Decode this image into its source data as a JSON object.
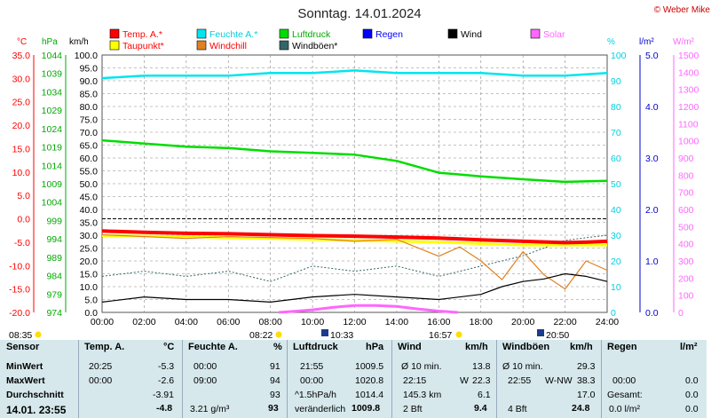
{
  "title": "Sonntag. 14.01.2024",
  "brand": "© Weber Mike",
  "legend": [
    {
      "label": "Temp. A.*",
      "color": "#ff0000",
      "text_color": "#ff0000"
    },
    {
      "label": "Taupunkt*",
      "color": "#ffff00",
      "text_color": "#ff0000"
    },
    {
      "label": "Feuchte A.*",
      "color": "#00e5ee",
      "text_color": "#00d0e0"
    },
    {
      "label": "Windchill",
      "color": "#e08020",
      "text_color": "#ff0000"
    },
    {
      "label": "Luftdruck",
      "color": "#00dd00",
      "text_color": "#00aa00"
    },
    {
      "label": "Windböen*",
      "color": "#336666",
      "text_color": "#000000"
    },
    {
      "label": "Regen",
      "color": "#0000ff",
      "text_color": "#0000ff"
    },
    {
      "label": "Wind",
      "color": "#000000",
      "text_color": "#000000"
    },
    {
      "label": "Solar",
      "color": "#ff66ff",
      "text_color": "#ff66ff"
    }
  ],
  "axes": {
    "temp_unit": "°C",
    "hpa_unit": "hPa",
    "kmh_unit": "km/h",
    "pct_unit": "%",
    "rain_unit": "l/m²",
    "solar_unit": "W/m²",
    "temp_ticks": [
      "35.0",
      "30.0",
      "25.0",
      "20.0",
      "15.0",
      "10.0",
      "5.0",
      "0.0",
      "-5.0",
      "-10.0",
      "-15.0",
      "-20.0"
    ],
    "hpa_ticks": [
      "1044",
      "1039",
      "1034",
      "1029",
      "1024",
      "1019",
      "1014",
      "1009",
      "1004",
      "999",
      "994",
      "989",
      "984",
      "979",
      "974"
    ],
    "kmh_ticks": [
      "100.0",
      "95.0",
      "90.0",
      "85.0",
      "80.0",
      "75.0",
      "70.0",
      "65.0",
      "60.0",
      "55.0",
      "50.0",
      "45.0",
      "40.0",
      "35.0",
      "30.0",
      "25.0",
      "20.0",
      "15.0",
      "10.0",
      "5.0",
      "0.0"
    ],
    "pct_ticks": [
      "100",
      "90",
      "80",
      "70",
      "60",
      "50",
      "40",
      "30",
      "20",
      "10",
      "0"
    ],
    "rain_ticks": [
      "5.0",
      "4.0",
      "3.0",
      "2.0",
      "1.0",
      "0.0"
    ],
    "solar_ticks": [
      "1500",
      "1400",
      "1300",
      "1200",
      "1100",
      "1000",
      "900",
      "800",
      "700",
      "600",
      "500",
      "400",
      "300",
      "200",
      "100",
      "0"
    ],
    "x_ticks": [
      "00:00",
      "02:00",
      "04:00",
      "06:00",
      "08:00",
      "10:00",
      "12:00",
      "14:00",
      "16:00",
      "18:00",
      "20:00",
      "22:00",
      "24:00"
    ]
  },
  "sun_marks": {
    "sunrise_prev": "08:35",
    "sunrise": "08:22",
    "moonrise": "10:33",
    "sunset": "16:57",
    "moonset": "20:50"
  },
  "chart_data": {
    "type": "line",
    "title": "Sonntag. 14.01.2024",
    "x_unit": "hours",
    "x_range": [
      0,
      24
    ],
    "kmh_range": [
      0,
      100
    ],
    "series": [
      {
        "name": "Temp. A.*",
        "unit": "°C",
        "x": [
          0,
          2,
          4,
          6,
          8,
          10,
          12,
          14,
          16,
          18,
          20,
          22,
          23,
          24
        ],
        "values": [
          -2.6,
          -2.9,
          -3.1,
          -3.2,
          -3.4,
          -3.6,
          -3.7,
          -3.9,
          -4.1,
          -4.5,
          -4.8,
          -5.1,
          -5.0,
          -4.8
        ]
      },
      {
        "name": "Taupunkt*",
        "unit": "°C",
        "x": [
          0,
          4,
          8,
          12,
          16,
          20,
          24
        ],
        "values": [
          -3.6,
          -3.8,
          -4.2,
          -4.6,
          -5.0,
          -5.6,
          -5.6
        ]
      },
      {
        "name": "Feuchte A.*",
        "unit": "%",
        "x": [
          0,
          2,
          4,
          6,
          8,
          10,
          12,
          14,
          16,
          18,
          20,
          22,
          24
        ],
        "values": [
          91,
          92,
          92,
          92,
          93,
          93,
          94,
          93,
          93,
          93,
          92,
          92,
          93
        ]
      },
      {
        "name": "Luftdruck",
        "unit": "hPa",
        "x": [
          0,
          2,
          4,
          6,
          8,
          10,
          12,
          14,
          16,
          18,
          20,
          22,
          24
        ],
        "values": [
          1020.8,
          1019.9,
          1019.1,
          1018.7,
          1017.8,
          1017.4,
          1016.9,
          1015.2,
          1012.0,
          1011.0,
          1010.2,
          1009.5,
          1009.8
        ]
      },
      {
        "name": "Solar",
        "unit": "W/m²",
        "x": [
          8.4,
          9,
          10,
          11,
          12,
          13,
          14,
          15,
          16,
          16.9
        ],
        "values": [
          0,
          5,
          15,
          30,
          40,
          40,
          35,
          20,
          8,
          0
        ]
      },
      {
        "name": "Wind",
        "unit": "km/h",
        "x": [
          0,
          2,
          4,
          6,
          8,
          10,
          12,
          14,
          16,
          18,
          19,
          20,
          21,
          22,
          23,
          24
        ],
        "values": [
          4,
          6,
          5,
          5,
          4,
          6,
          7,
          6,
          5,
          7,
          10,
          12,
          13,
          15,
          14,
          12
        ]
      },
      {
        "name": "Windböen*",
        "unit": "km/h",
        "x": [
          0,
          2,
          4,
          6,
          8,
          10,
          12,
          14,
          16,
          18,
          20,
          22,
          24
        ],
        "values": [
          14,
          16,
          14,
          16,
          12,
          18,
          16,
          18,
          14,
          18,
          22,
          28,
          30
        ]
      },
      {
        "name": "Windchill",
        "unit": "°C",
        "x": [
          0,
          4,
          6,
          8,
          10,
          12,
          14,
          16,
          17,
          18,
          19,
          20,
          21,
          22,
          23,
          24
        ],
        "values": [
          -3.4,
          -4.2,
          -3.8,
          -4.0,
          -4.2,
          -4.8,
          -4.4,
          -8,
          -6,
          -9,
          -13,
          -7,
          -12,
          -15,
          -9,
          -11
        ]
      }
    ]
  },
  "table": {
    "headers": {
      "sensor": "Sensor",
      "temp": "Temp. A.",
      "temp_u": "°C",
      "hum": "Feuchte A.",
      "hum_u": "%",
      "press": "Luftdruck",
      "press_u": "hPa",
      "wind": "Wind",
      "wind_u": "km/h",
      "gust": "Windböen",
      "gust_u": "km/h",
      "rain": "Regen",
      "rain_u": "l/m²"
    },
    "row_labels": {
      "min": "MinWert",
      "max": "MaxWert",
      "avg": "Durchschnitt",
      "now": "14.01. 23:55"
    },
    "temp": {
      "min_t": "20:25",
      "min_v": "-5.3",
      "max_t": "00:00",
      "max_v": "-2.6",
      "avg_v": "-3.91",
      "now_v": "-4.8"
    },
    "hum": {
      "min_t": "00:00",
      "min_v": "91",
      "max_t": "09:00",
      "max_v": "94",
      "avg_v": "93",
      "now_l": "3.21 g/m³",
      "now_v": "93"
    },
    "press": {
      "min_t": "21:55",
      "min_v": "1009.5",
      "max_t": "00:00",
      "max_v": "1020.8",
      "avg_l": "^1.5hPa/h",
      "avg_v": "1014.4",
      "now_l": "veränderlich",
      "now_v": "1009.8"
    },
    "wind": {
      "min_l": "Ø 10 min.",
      "min_v": "13.8",
      "max_t": "22:15",
      "max_l": "W",
      "max_v": "22.3",
      "avg_l": "145.3 km",
      "avg_v": "6.1",
      "now_l": "2 Bft",
      "now_v": "9.4"
    },
    "gust": {
      "min_l": "Ø 10 min.",
      "min_v": "29.3",
      "max_t": "22:55",
      "max_l": "W-NW",
      "max_v": "38.3",
      "avg_v": "17.0",
      "now_l": "4 Bft",
      "now_v": "24.8"
    },
    "rain": {
      "max_t": "00:00",
      "max_v": "0.0",
      "avg_l": "Gesamt:",
      "avg_v": "0.0",
      "now_l": "0.0 l/m²",
      "now_v": "0.0"
    }
  }
}
